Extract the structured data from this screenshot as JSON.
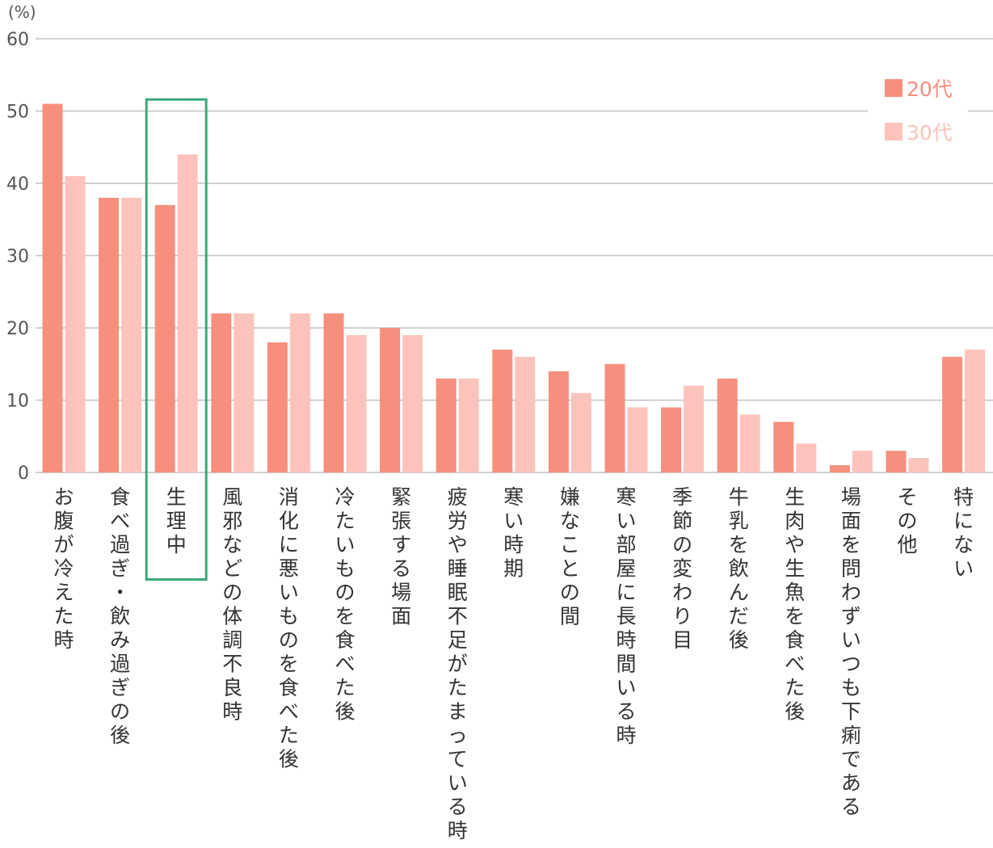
{
  "chart_data": {
    "type": "bar",
    "unit_label": "(%)",
    "ylim": [
      0,
      60
    ],
    "yticks": [
      0,
      10,
      20,
      30,
      40,
      50,
      60
    ],
    "grid": true,
    "legend_position": "top-right",
    "categories": [
      "お腹が冷えた時",
      "食べ過ぎ・飲み過ぎの後",
      "生理中",
      "風邪などの体調不良時",
      "消化に悪いものを食べた後",
      "冷たいものを食べた後",
      "緊張する場面",
      "疲労や睡眠不足がたまっている時",
      "寒い時期",
      "嫌なことの間",
      "寒い部屋に長時間いる時",
      "季節の変わり目",
      "牛乳を飲んだ後",
      "生肉や生魚を食べた後",
      "場面を問わずいつも下痢である",
      "その他",
      "特にない"
    ],
    "series": [
      {
        "name": "20代",
        "color": "#f78f7e",
        "values": [
          51,
          38,
          37,
          22,
          18,
          22,
          20,
          13,
          17,
          14,
          15,
          9,
          13,
          7,
          1,
          3,
          16
        ]
      },
      {
        "name": "30代",
        "color": "#fcc3bc",
        "values": [
          41,
          38,
          44,
          22,
          22,
          19,
          19,
          13,
          16,
          11,
          9,
          12,
          8,
          4,
          3,
          2,
          17
        ]
      }
    ],
    "highlight": {
      "category": "生理中",
      "color": "#3aa87a"
    },
    "gridline_color": "#c2c2c2"
  }
}
